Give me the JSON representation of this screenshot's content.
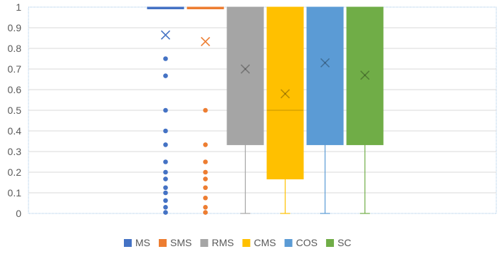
{
  "chart_data": {
    "type": "box",
    "ylim": [
      0,
      1
    ],
    "yticks": [
      "0",
      "0.1",
      "0.2",
      "0.3",
      "0.4",
      "0.5",
      "0.6",
      "0.7",
      "0.8",
      "0.9",
      "1"
    ],
    "grid": true,
    "legend_position": "bottom",
    "series": [
      {
        "name": "MS",
        "color": "#4472C4",
        "min": 1,
        "q1": 1,
        "median": 1,
        "q3": 1,
        "max": 1,
        "mean": 0.865,
        "outliers": [
          0.75,
          0.667,
          0.5,
          0.4,
          0.333,
          0.25,
          0.2,
          0.167,
          0.125,
          0.1,
          0.0625,
          0.03,
          0.005
        ]
      },
      {
        "name": "SMS",
        "color": "#ED7D31",
        "min": 1,
        "q1": 1,
        "median": 1,
        "q3": 1,
        "max": 1,
        "mean": 0.833,
        "outliers": [
          0.5,
          0.333,
          0.25,
          0.2,
          0.167,
          0.125,
          0.075,
          0.03,
          0.005
        ]
      },
      {
        "name": "RMS",
        "color": "#A5A5A5",
        "min": 0,
        "q1": 0.333,
        "median": 1,
        "q3": 1,
        "max": 1,
        "mean": 0.7,
        "outliers": []
      },
      {
        "name": "CMS",
        "color": "#FFC000",
        "min": 0,
        "q1": 0.167,
        "median": 0.5,
        "q3": 1,
        "max": 1,
        "mean": 0.58,
        "outliers": []
      },
      {
        "name": "COS",
        "color": "#5B9BD5",
        "min": 0,
        "q1": 0.333,
        "median": 1,
        "q3": 1,
        "max": 1,
        "mean": 0.73,
        "outliers": []
      },
      {
        "name": "SC",
        "color": "#70AD47",
        "min": 0,
        "q1": 0.333,
        "median": 1,
        "q3": 1,
        "max": 1,
        "mean": 0.67,
        "outliers": []
      }
    ]
  }
}
